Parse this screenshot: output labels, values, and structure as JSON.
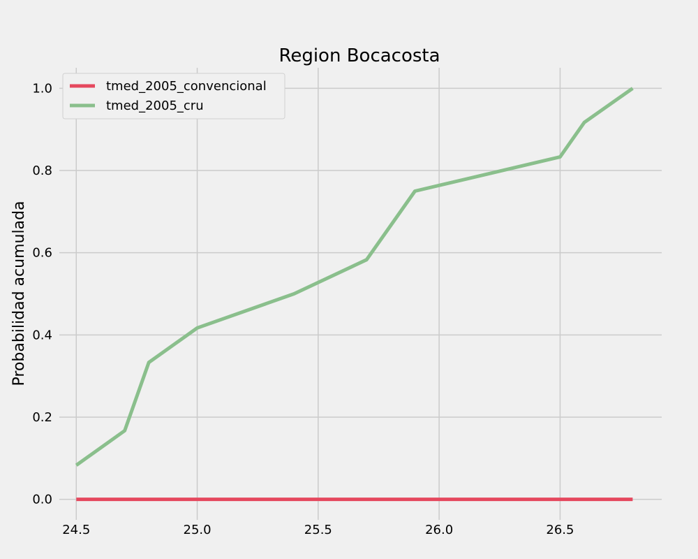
{
  "chart_data": {
    "type": "line",
    "title": "Region Bocacosta",
    "xlabel": "",
    "ylabel": "Probabilidad acumulada",
    "xlim": [
      24.43,
      26.92
    ],
    "ylim": [
      -0.05,
      1.05
    ],
    "grid": true,
    "legend_position": "top-left",
    "x_ticks": [
      24.5,
      25.0,
      25.5,
      26.0,
      26.5
    ],
    "x_tick_labels": [
      "24.5",
      "25.0",
      "25.5",
      "26.0",
      "26.5"
    ],
    "y_ticks": [
      0.0,
      0.2,
      0.4,
      0.6,
      0.8,
      1.0
    ],
    "y_tick_labels": [
      "0.0",
      "0.2",
      "0.4",
      "0.6",
      "0.8",
      "1.0"
    ],
    "series": [
      {
        "name": "tmed_2005_convencional",
        "color": "#e5485e",
        "x": [
          24.5,
          26.8
        ],
        "y": [
          0.0,
          0.0
        ]
      },
      {
        "name": "tmed_2005_cru",
        "color": "#8abf8c",
        "x": [
          24.5,
          24.7,
          24.8,
          25.0,
          25.4,
          25.7,
          25.9,
          26.5,
          26.6,
          26.8
        ],
        "y": [
          0.083,
          0.167,
          0.333,
          0.417,
          0.5,
          0.583,
          0.75,
          0.833,
          0.917,
          1.0
        ]
      }
    ]
  }
}
